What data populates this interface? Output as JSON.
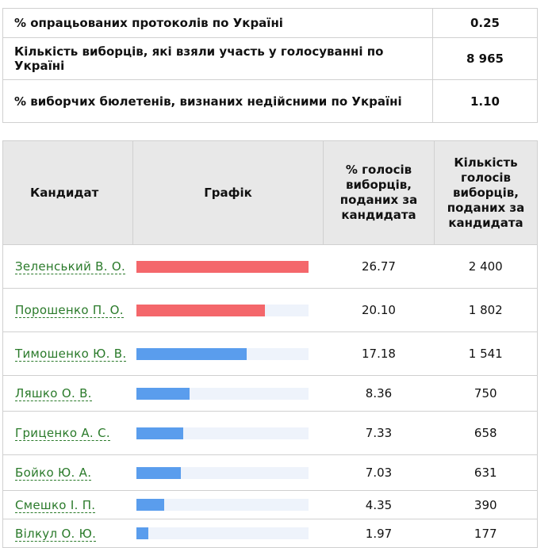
{
  "summary": {
    "rows": [
      {
        "label": "% опрацьованих протоколів по Україні",
        "value": "0.25"
      },
      {
        "label": "Кількість виборців, які взяли участь у голосуванні по Україні",
        "value": "8 965"
      },
      {
        "label": "% виборчих бюлетенів, визнаних недійсними по Україні",
        "value": "1.10"
      }
    ]
  },
  "results": {
    "headers": {
      "candidate": "Кандидат",
      "chart": "Графік",
      "percent": "% голосів виборців, поданих за кандидата",
      "votes": "Кількість голосів виборців, поданих за кандидата"
    },
    "rows": [
      {
        "name": "Зеленський В. О.",
        "percent": "26.77",
        "votes": "2 400"
      },
      {
        "name": "Порошенко П. О.",
        "percent": "20.10",
        "votes": "1 802"
      },
      {
        "name": "Тимошенко Ю. В.",
        "percent": "17.18",
        "votes": "1 541"
      },
      {
        "name": "Ляшко О. В.",
        "percent": "8.36",
        "votes": "750"
      },
      {
        "name": "Гриценко А. С.",
        "percent": "7.33",
        "votes": "658"
      },
      {
        "name": "Бойко Ю. А.",
        "percent": "7.03",
        "votes": "631"
      },
      {
        "name": "Смешко І. П.",
        "percent": "4.35",
        "votes": "390"
      },
      {
        "name": "Вілкул О. Ю.",
        "percent": "1.97",
        "votes": "177"
      }
    ]
  },
  "bar_scale_max": 26.77,
  "colors": {
    "leader_bar": "#f4676b",
    "other_bar": "#5a9ded",
    "bar_track": "#eef3fb",
    "link": "#2a7a2a",
    "header_bg": "#e8e8e8"
  },
  "bar_color_by_row": [
    "leader_bar",
    "leader_bar",
    "other_bar",
    "other_bar",
    "other_bar",
    "other_bar",
    "other_bar",
    "other_bar"
  ]
}
